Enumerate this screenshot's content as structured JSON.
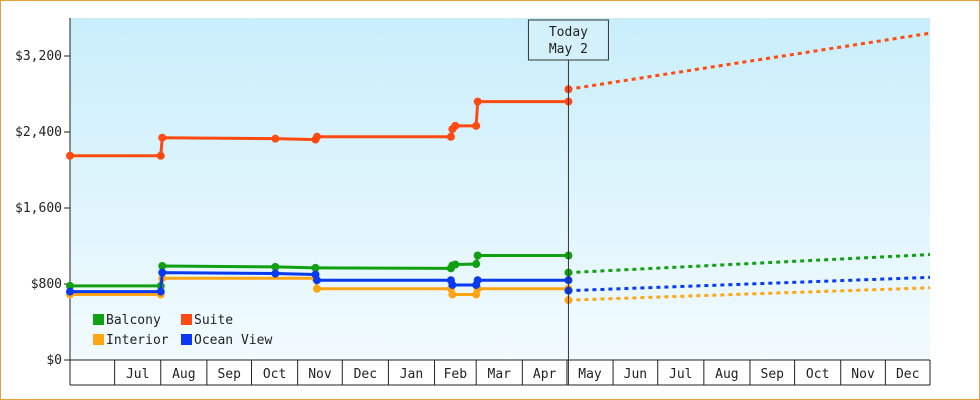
{
  "chart_data": {
    "type": "line",
    "ylim": [
      0,
      3600
    ],
    "y_ticks": [
      0,
      800,
      1600,
      2400,
      3200
    ],
    "y_tick_labels": [
      "$0",
      "$800",
      "$1,600",
      "$2,400",
      "$3,200"
    ],
    "x_range": [
      "2013-06-01",
      "2014-12-31"
    ],
    "month_labels": [
      "Jul",
      "Aug",
      "Sep",
      "Oct",
      "Nov",
      "Dec",
      "Jan",
      "Feb",
      "Mar",
      "Apr",
      "May",
      "Jun",
      "Jul",
      "Aug",
      "Sep",
      "Oct",
      "Nov",
      "Dec"
    ],
    "month_starts": [
      "2013-07-01",
      "2013-08-01",
      "2013-09-01",
      "2013-10-01",
      "2013-11-01",
      "2013-12-01",
      "2014-01-01",
      "2014-02-01",
      "2014-03-01",
      "2014-04-01",
      "2014-05-01",
      "2014-06-01",
      "2014-07-01",
      "2014-08-01",
      "2014-09-01",
      "2014-10-01",
      "2014-11-01",
      "2014-12-01"
    ],
    "today": {
      "date": "2014-05-02",
      "label_line1": "Today",
      "label_line2": "May 2"
    },
    "legend": {
      "placement": "bottom-left"
    },
    "series": [
      {
        "name": "Balcony",
        "color": "#11a011",
        "points": [
          [
            "2013-06-01",
            780
          ],
          [
            "2013-08-01",
            780
          ],
          [
            "2013-08-02",
            990
          ],
          [
            "2013-10-17",
            980
          ],
          [
            "2013-11-13",
            970
          ],
          [
            "2014-02-12",
            965
          ],
          [
            "2014-02-13",
            995
          ],
          [
            "2014-02-15",
            1005
          ],
          [
            "2014-03-01",
            1010
          ],
          [
            "2014-03-02",
            1100
          ],
          [
            "2014-05-02",
            1100
          ]
        ],
        "forecast": [
          [
            "2014-05-02",
            920
          ],
          [
            "2014-12-31",
            1110
          ]
        ]
      },
      {
        "name": "Suite",
        "color": "#ff4a12",
        "points": [
          [
            "2013-06-01",
            2150
          ],
          [
            "2013-08-01",
            2150
          ],
          [
            "2013-08-02",
            2340
          ],
          [
            "2013-10-17",
            2330
          ],
          [
            "2013-11-13",
            2320
          ],
          [
            "2013-11-14",
            2350
          ],
          [
            "2014-02-12",
            2350
          ],
          [
            "2014-02-13",
            2430
          ],
          [
            "2014-02-15",
            2465
          ],
          [
            "2014-03-01",
            2465
          ],
          [
            "2014-03-02",
            2720
          ],
          [
            "2014-05-02",
            2720
          ]
        ],
        "forecast": [
          [
            "2014-05-02",
            2850
          ],
          [
            "2014-12-31",
            3440
          ]
        ]
      },
      {
        "name": "Interior",
        "color": "#ffa514",
        "points": [
          [
            "2013-06-01",
            690
          ],
          [
            "2013-08-01",
            690
          ],
          [
            "2013-08-02",
            860
          ],
          [
            "2013-10-17",
            860
          ],
          [
            "2013-11-13",
            860
          ],
          [
            "2013-11-14",
            750
          ],
          [
            "2014-02-12",
            750
          ],
          [
            "2014-02-13",
            690
          ],
          [
            "2014-02-15",
            690
          ],
          [
            "2014-03-01",
            690
          ],
          [
            "2014-03-02",
            750
          ],
          [
            "2014-05-02",
            750
          ]
        ],
        "forecast": [
          [
            "2014-05-02",
            630
          ],
          [
            "2014-12-31",
            760
          ]
        ]
      },
      {
        "name": "Ocean View",
        "color": "#0a3af0",
        "points": [
          [
            "2013-06-01",
            720
          ],
          [
            "2013-08-01",
            720
          ],
          [
            "2013-08-02",
            920
          ],
          [
            "2013-10-17",
            910
          ],
          [
            "2013-11-13",
            900
          ],
          [
            "2013-11-14",
            840
          ],
          [
            "2014-02-12",
            840
          ],
          [
            "2014-02-13",
            790
          ],
          [
            "2014-02-15",
            790
          ],
          [
            "2014-03-01",
            790
          ],
          [
            "2014-03-02",
            840
          ],
          [
            "2014-05-02",
            840
          ]
        ],
        "forecast": [
          [
            "2014-05-02",
            730
          ],
          [
            "2014-12-31",
            870
          ]
        ]
      }
    ]
  }
}
